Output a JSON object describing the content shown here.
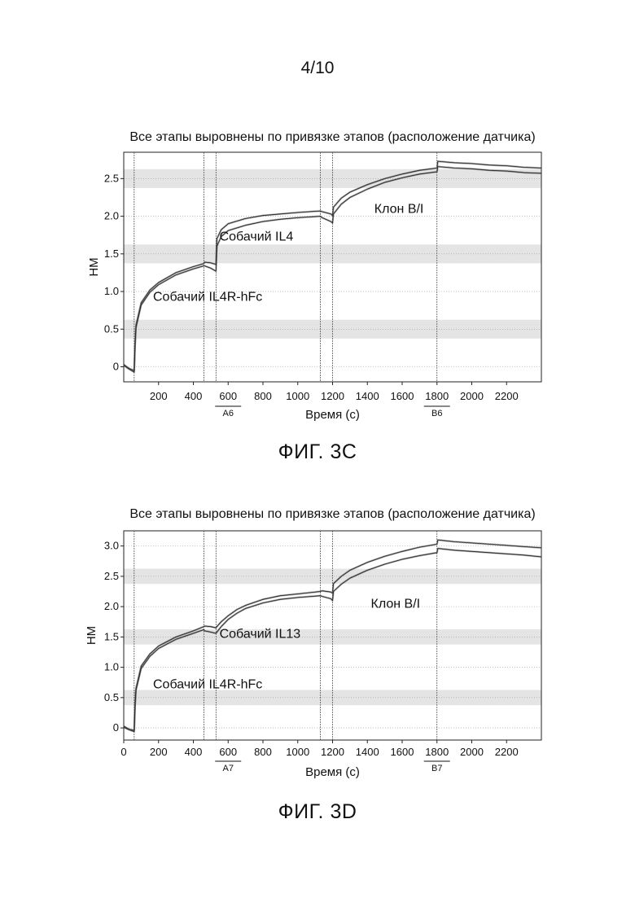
{
  "page": {
    "number": "4/10"
  },
  "chart_data": [
    {
      "id": "chart-c",
      "figure_label": "ФИГ. 3С",
      "type": "line",
      "title": "Все этапы выровнены по привязке этапов (расположение датчика)",
      "xlabel": "Время (с)",
      "ylabel": "НМ",
      "xlim": [
        0,
        2400
      ],
      "ylim": [
        -0.2,
        2.85
      ],
      "x_ticks": [
        200,
        400,
        600,
        800,
        1000,
        1200,
        1400,
        1600,
        1800,
        2000,
        2200
      ],
      "y_ticks": [
        0,
        0.5,
        1.0,
        1.5,
        2.0,
        2.5
      ],
      "y_tick_labels": [
        "0",
        "0.5",
        "1.0",
        "1.5",
        "2.0",
        "2.5"
      ],
      "grid": "horizontal dotted shaded bands",
      "step_boundaries_x": [
        60,
        460,
        530,
        1130,
        1200,
        1800
      ],
      "step_markers": [
        {
          "label": "A6",
          "x": 600
        },
        {
          "label": "B6",
          "x": 1800
        }
      ],
      "annotations": [
        {
          "text": "Собачий IL4R-hFc",
          "x": 1,
          "y": 0.93
        },
        {
          "text": "Собачий IL4",
          "x": 550,
          "y": 1.73
        },
        {
          "text": "Клон B/I",
          "x": 1440,
          "y": 2.1
        }
      ],
      "series": [
        {
          "x": [
            0,
            30,
            60,
            65,
            70,
            100,
            150,
            200,
            300,
            400,
            460,
            465,
            500,
            530,
            535,
            560,
            600,
            700,
            800,
            900,
            1000,
            1130,
            1140,
            1190,
            1200,
            1205,
            1250,
            1300,
            1400,
            1500,
            1600,
            1700,
            1800,
            1805,
            1900,
            2000,
            2100,
            2200,
            2300,
            2400
          ],
          "y": [
            0.03,
            -0.02,
            -0.05,
            0.3,
            0.55,
            0.85,
            1.02,
            1.12,
            1.25,
            1.33,
            1.37,
            1.39,
            1.38,
            1.36,
            1.7,
            1.82,
            1.9,
            1.97,
            2.01,
            2.03,
            2.05,
            2.07,
            2.06,
            2.03,
            2.01,
            2.12,
            2.24,
            2.32,
            2.42,
            2.5,
            2.56,
            2.61,
            2.64,
            2.73,
            2.71,
            2.7,
            2.68,
            2.67,
            2.65,
            2.64
          ]
        },
        {
          "x": [
            0,
            30,
            60,
            65,
            70,
            100,
            150,
            200,
            300,
            400,
            460,
            465,
            500,
            530,
            535,
            560,
            600,
            700,
            800,
            900,
            1000,
            1130,
            1140,
            1190,
            1200,
            1205,
            1250,
            1300,
            1400,
            1500,
            1600,
            1700,
            1800,
            1805,
            1900,
            2000,
            2100,
            2200,
            2300,
            2400
          ],
          "y": [
            0.02,
            -0.03,
            -0.07,
            0.28,
            0.52,
            0.82,
            0.99,
            1.09,
            1.22,
            1.3,
            1.34,
            1.34,
            1.31,
            1.27,
            1.6,
            1.73,
            1.81,
            1.88,
            1.93,
            1.96,
            1.98,
            2.0,
            1.98,
            1.93,
            1.91,
            2.03,
            2.16,
            2.25,
            2.36,
            2.45,
            2.51,
            2.56,
            2.59,
            2.66,
            2.64,
            2.63,
            2.61,
            2.6,
            2.58,
            2.57
          ]
        }
      ]
    },
    {
      "id": "chart-d",
      "figure_label": "ФИГ. 3D",
      "type": "line",
      "title": "Все этапы выровнены по привязке этапов (расположение датчика)",
      "xlabel": "Время (с)",
      "ylabel": "НМ",
      "xlim": [
        0,
        2400
      ],
      "ylim": [
        -0.2,
        3.25
      ],
      "x_ticks": [
        0,
        200,
        400,
        600,
        800,
        1000,
        1200,
        1400,
        1600,
        1800,
        2000,
        2200
      ],
      "y_ticks": [
        0,
        0.5,
        1.0,
        1.5,
        2.0,
        2.5,
        3.0
      ],
      "y_tick_labels": [
        "0",
        "0.5",
        "1.0",
        "1.5",
        "2.0",
        "2.5",
        "3.0"
      ],
      "grid": "horizontal dotted shaded bands",
      "step_boundaries_x": [
        60,
        460,
        530,
        1130,
        1200,
        1800
      ],
      "step_markers": [
        {
          "label": "A7",
          "x": 600
        },
        {
          "label": "B7",
          "x": 1800
        }
      ],
      "annotations": [
        {
          "text": "Собачий IL4R-hFc",
          "x": 1,
          "y": 0.72
        },
        {
          "text": "Собачий IL13",
          "x": 550,
          "y": 1.55
        },
        {
          "text": "Клон B/I",
          "x": 1420,
          "y": 2.05
        }
      ],
      "series": [
        {
          "x": [
            0,
            30,
            60,
            65,
            70,
            100,
            150,
            200,
            300,
            400,
            460,
            465,
            500,
            530,
            535,
            560,
            600,
            650,
            700,
            800,
            900,
            1000,
            1130,
            1140,
            1190,
            1200,
            1205,
            1250,
            1300,
            1400,
            1500,
            1600,
            1700,
            1800,
            1805,
            1900,
            2000,
            2100,
            2200,
            2300,
            2400
          ],
          "y": [
            0.03,
            -0.02,
            -0.04,
            0.4,
            0.65,
            1.02,
            1.22,
            1.35,
            1.5,
            1.6,
            1.67,
            1.68,
            1.67,
            1.65,
            1.67,
            1.75,
            1.85,
            1.95,
            2.02,
            2.12,
            2.18,
            2.21,
            2.25,
            2.26,
            2.24,
            2.22,
            2.38,
            2.5,
            2.6,
            2.73,
            2.83,
            2.91,
            2.98,
            3.03,
            3.1,
            3.07,
            3.05,
            3.03,
            3.01,
            2.99,
            2.97
          ]
        },
        {
          "x": [
            0,
            30,
            60,
            65,
            70,
            100,
            150,
            200,
            300,
            400,
            460,
            465,
            500,
            530,
            535,
            560,
            600,
            650,
            700,
            800,
            900,
            1000,
            1130,
            1140,
            1190,
            1200,
            1205,
            1250,
            1300,
            1400,
            1500,
            1600,
            1700,
            1800,
            1805,
            1900,
            2000,
            2100,
            2200,
            2300,
            2400
          ],
          "y": [
            0.01,
            -0.03,
            -0.06,
            0.36,
            0.62,
            0.98,
            1.18,
            1.31,
            1.46,
            1.56,
            1.62,
            1.6,
            1.58,
            1.56,
            1.58,
            1.67,
            1.79,
            1.89,
            1.97,
            2.06,
            2.12,
            2.15,
            2.18,
            2.17,
            2.13,
            2.1,
            2.25,
            2.37,
            2.47,
            2.6,
            2.7,
            2.78,
            2.84,
            2.89,
            2.96,
            2.93,
            2.91,
            2.89,
            2.87,
            2.85,
            2.82
          ]
        }
      ]
    }
  ]
}
